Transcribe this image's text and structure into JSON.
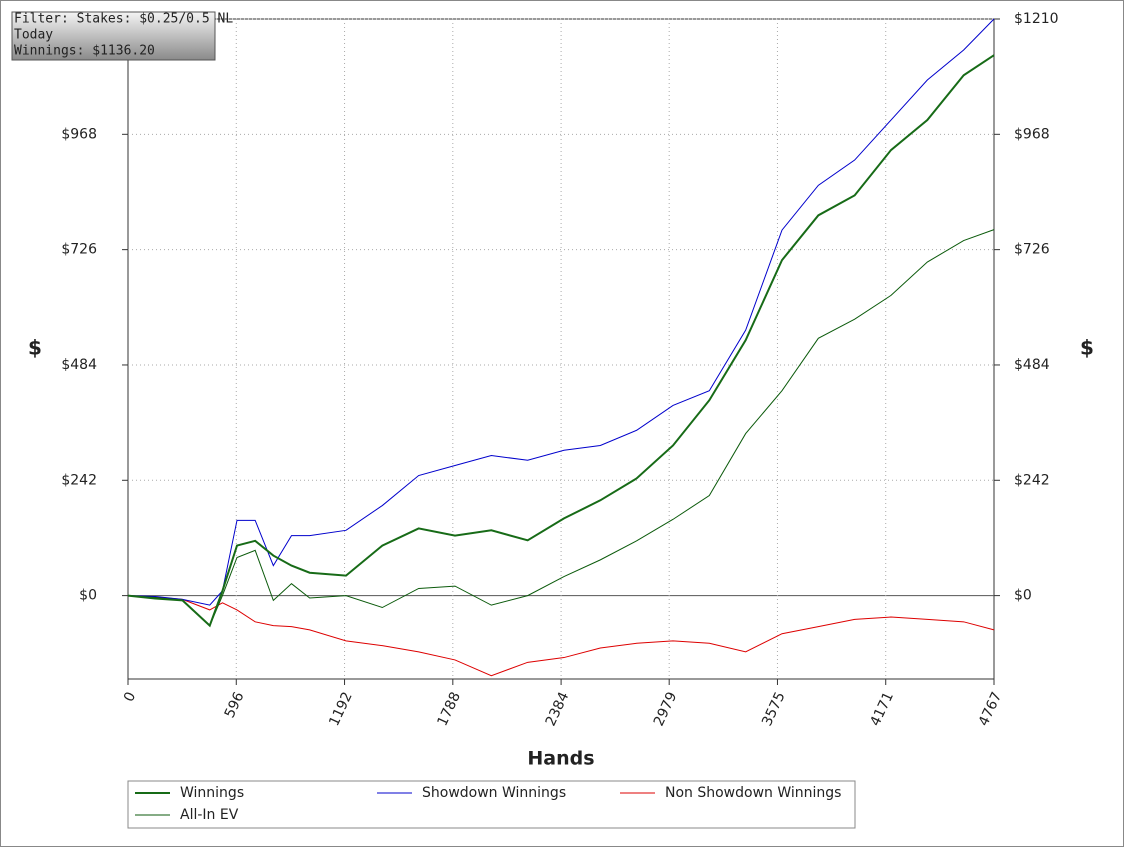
{
  "chart_data": {
    "type": "line",
    "annotations": [
      "Filter: Stakes: $0.25/0.5 NL",
      "Today",
      "Winnings: $1136.20"
    ],
    "xlabel": "Hands",
    "ylabel": "$",
    "x": [
      0,
      150,
      300,
      450,
      520,
      600,
      700,
      800,
      900,
      1000,
      1200,
      1400,
      1600,
      1800,
      2000,
      2200,
      2400,
      2600,
      2800,
      3000,
      3200,
      3400,
      3600,
      3800,
      4000,
      4200,
      4400,
      4600,
      4767
    ],
    "xlim": [
      0,
      4767
    ],
    "xticks": [
      0,
      596,
      1192,
      1788,
      2384,
      2979,
      3575,
      4171,
      4767
    ],
    "ylim": [
      -175,
      1210
    ],
    "yticks": [
      {
        "value": 0,
        "label": "$0"
      },
      {
        "value": 242,
        "label": "$242"
      },
      {
        "value": 484,
        "label": "$484"
      },
      {
        "value": 726,
        "label": "$726"
      },
      {
        "value": 968,
        "label": "$968"
      },
      {
        "value": 1210,
        "label": "$1210"
      }
    ],
    "grid": true,
    "series": [
      {
        "name": "Winnings",
        "color": "#176b17",
        "values": [
          0,
          -6,
          -10,
          -63,
          10,
          105,
          115,
          84,
          63,
          48,
          42,
          105,
          141,
          126,
          137,
          116,
          162,
          200,
          246,
          315,
          410,
          536,
          704,
          798,
          840,
          935,
          998,
          1092,
          1134
        ]
      },
      {
        "name": "Showdown Winnings",
        "color": "#0000cc",
        "values": [
          0,
          -2,
          -8,
          -20,
          10,
          158,
          158,
          63,
          126,
          126,
          137,
          189,
          252,
          273,
          294,
          284,
          305,
          315,
          347,
          399,
          430,
          557,
          767,
          861,
          914,
          998,
          1082,
          1145,
          1210
        ]
      },
      {
        "name": "Non Showdown Winnings",
        "color": "#dd0000",
        "values": [
          0,
          -3,
          -8,
          -30,
          -15,
          -30,
          -55,
          -63,
          -65,
          -72,
          -95,
          -105,
          -118,
          -135,
          -168,
          -140,
          -130,
          -110,
          -100,
          -95,
          -100,
          -118,
          -80,
          -65,
          -50,
          -45,
          -50,
          -55,
          -72
        ]
      },
      {
        "name": "All-In EV",
        "color": "#0b5a0b",
        "values": [
          0,
          -4,
          -10,
          -63,
          0,
          80,
          95,
          -10,
          25,
          -5,
          0,
          -25,
          15,
          20,
          -20,
          0,
          40,
          75,
          115,
          160,
          210,
          340,
          430,
          540,
          580,
          630,
          700,
          745,
          768
        ]
      }
    ]
  }
}
